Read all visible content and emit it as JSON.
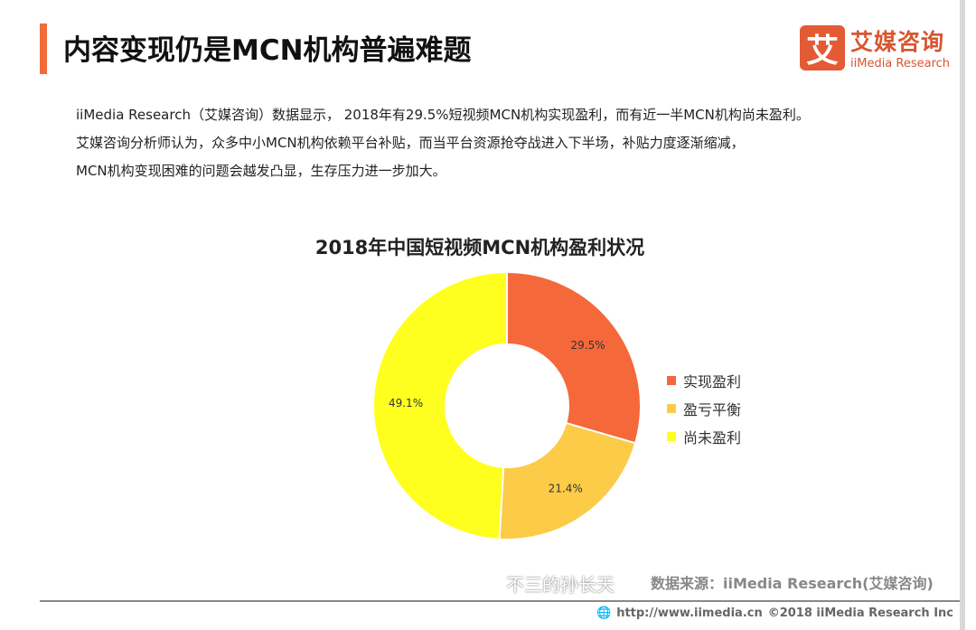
{
  "header": {
    "title": "内容变现仍是MCN机构普遍难题",
    "logo_cn": "艾媒咨询",
    "logo_en": "iiMedia Research",
    "logo_mark": "艾"
  },
  "paragraph": [
    "iiMedia Research（艾媒咨询）数据显示， 2018年有29.5%短视频MCN机构实现盈利，而有近一半MCN机构尚未盈利。",
    "艾媒咨询分析师认为，众多中小MCN机构依赖平台补贴，而当平台资源抢夺战进入下半场，补贴力度逐渐缩减，",
    "MCN机构变现困难的问题会越发凸显，生存压力进一步加大。"
  ],
  "chart_data": {
    "type": "pie",
    "variant": "donut",
    "title": "2018年中国短视频MCN机构盈利状况",
    "categories": [
      "实现盈利",
      "盈亏平衡",
      "尚未盈利"
    ],
    "values": [
      29.5,
      21.4,
      49.1
    ],
    "labels": [
      "29.5%",
      "21.4%",
      "49.1%"
    ],
    "colors": [
      "#f5683a",
      "#fccb47",
      "#ffff1f"
    ],
    "legend": "right"
  },
  "footer": {
    "source": "数据来源：iiMedia Research(艾媒咨询)",
    "watermark": "不三的孙长天",
    "url": "http://www.iimedia.cn",
    "copyright": "©2018  iiMedia Research  Inc"
  }
}
